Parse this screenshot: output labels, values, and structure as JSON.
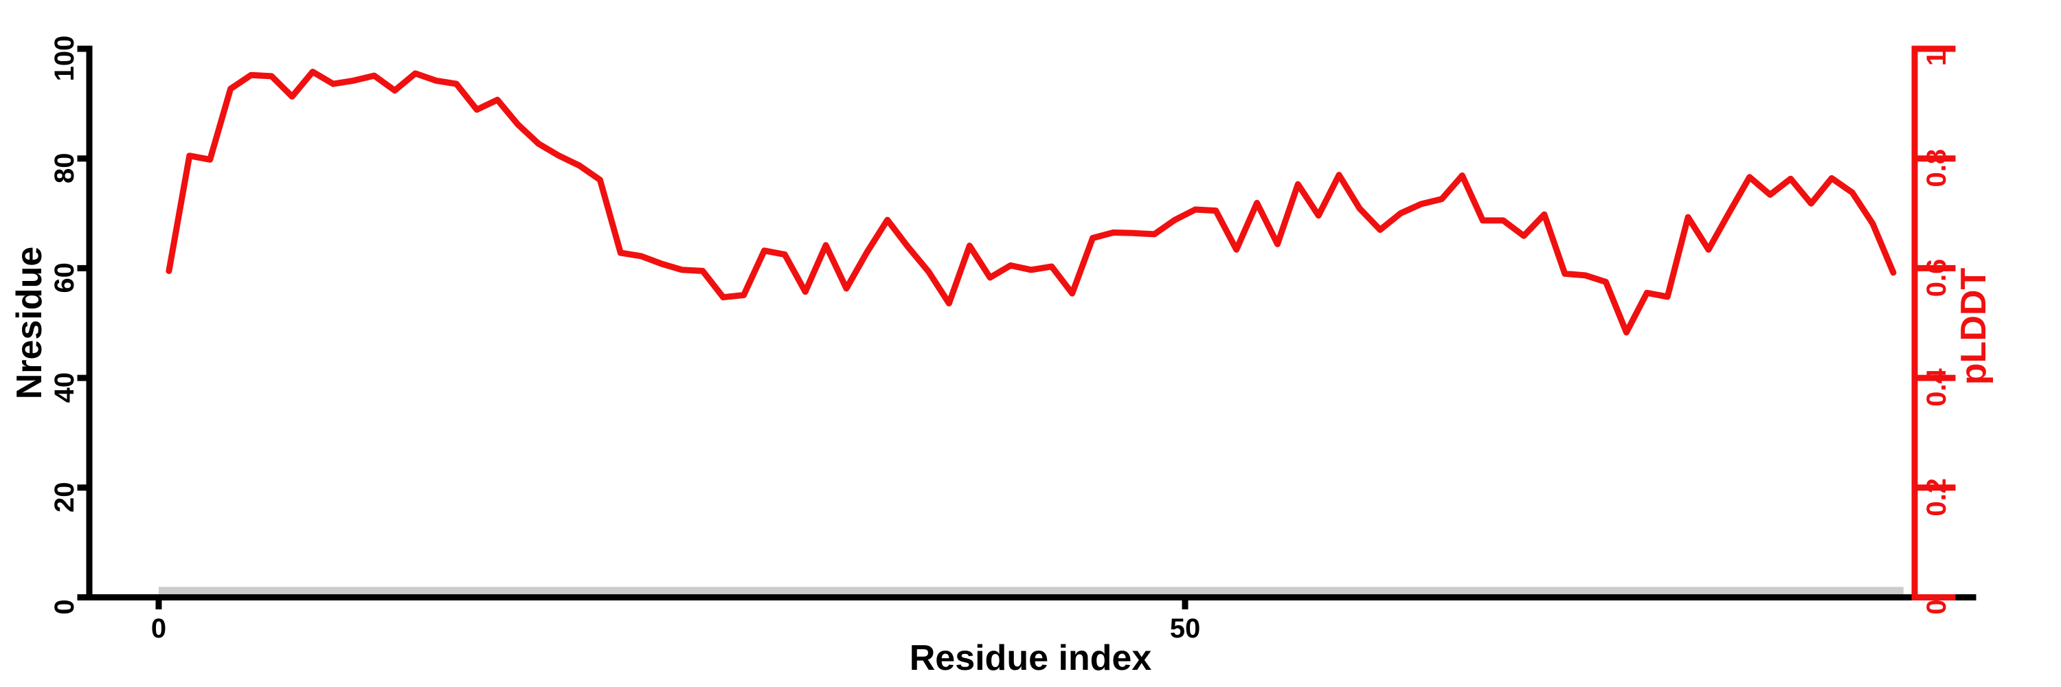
{
  "chart_data": {
    "type": "line",
    "title": "",
    "xlabel": "Residue index",
    "ylabel_left": "Nresidue",
    "ylabel_right": "pLDDT",
    "x_axis": {
      "ticks": [
        0,
        50
      ],
      "tick_labels": [
        "0",
        "50"
      ]
    },
    "y_axis_left": {
      "range": [
        0,
        100
      ],
      "ticks": [
        0,
        20,
        40,
        60,
        80,
        100
      ],
      "tick_labels": [
        "0",
        "20",
        "40",
        "60",
        "80",
        "100"
      ]
    },
    "y_axis_right": {
      "range": [
        0,
        1
      ],
      "ticks": [
        0,
        0.2,
        0.4,
        0.6,
        0.8,
        1
      ],
      "tick_labels": [
        "0",
        "0.2",
        "0.4",
        "0.6",
        "0.8",
        "1"
      ]
    },
    "grid": "off",
    "legend": "none",
    "series": [
      {
        "name": "pLDDT",
        "axis": "right",
        "x_start": 0.5,
        "x_step": 1,
        "values": [
          0.595,
          0.805,
          0.798,
          0.927,
          0.952,
          0.95,
          0.913,
          0.958,
          0.936,
          0.942,
          0.951,
          0.924,
          0.955,
          0.942,
          0.936,
          0.889,
          0.907,
          0.862,
          0.827,
          0.805,
          0.787,
          0.761,
          0.628,
          0.622,
          0.608,
          0.597,
          0.595,
          0.547,
          0.551,
          0.632,
          0.625,
          0.557,
          0.642,
          0.563,
          0.629,
          0.688,
          0.639,
          0.594,
          0.536,
          0.641,
          0.583,
          0.605,
          0.597,
          0.603,
          0.554,
          0.655,
          0.665,
          0.664,
          0.662,
          0.688,
          0.707,
          0.705,
          0.634,
          0.719,
          0.644,
          0.753,
          0.696,
          0.77,
          0.709,
          0.67,
          0.7,
          0.717,
          0.726,
          0.769,
          0.687,
          0.687,
          0.659,
          0.698,
          0.59,
          0.587,
          0.575,
          0.483,
          0.555,
          0.548,
          0.693,
          0.634,
          0.701,
          0.766,
          0.734,
          0.763,
          0.718,
          0.764,
          0.738,
          0.681,
          0.592
        ]
      }
    ],
    "annotation_bar": {
      "x0": 0,
      "x1": 85,
      "y0": 0,
      "y1": 1.9,
      "color": "#cccccc"
    },
    "colors": {
      "series": "#f01010",
      "left_axis": "#000000",
      "right_axis": "#f01010",
      "background": "#ffffff"
    }
  }
}
